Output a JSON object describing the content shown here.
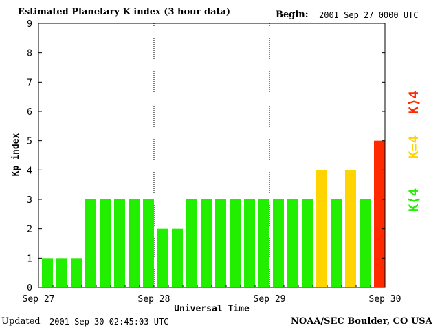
{
  "header": {
    "title": "Estimated Planetary K index (3 hour data)",
    "begin_label": "Begin:",
    "begin_value": "2001 Sep 27 0000 UTC"
  },
  "footer": {
    "updated_label": "Updated",
    "updated_value": "2001 Sep 30 02:45:03 UTC",
    "source": "NOAA/SEC Boulder, CO USA"
  },
  "colors": {
    "below_4": "#22ee00",
    "equal_4": "#ffd400",
    "above_4": "#ff2a00"
  },
  "legend": [
    {
      "label": "K⟨4",
      "color": "#22ee00"
    },
    {
      "label": "K=4",
      "color": "#ffd400"
    },
    {
      "label": "K⟩4",
      "color": "#ff2a00"
    }
  ],
  "chart_data": {
    "type": "bar",
    "xlabel": "Universal Time",
    "ylabel": "Kp index",
    "ylim": [
      0,
      9
    ],
    "yticks": [
      "0",
      "1",
      "2",
      "3",
      "4",
      "5",
      "6",
      "7",
      "8",
      "9"
    ],
    "xticks": [
      "Sep 27",
      "Sep 28",
      "Sep 29",
      "Sep 30"
    ],
    "grid": "vertical dotted lines at day boundaries",
    "bar_interval_hours": 3,
    "values": [
      1,
      1,
      1,
      3,
      3,
      3,
      3,
      3,
      2,
      2,
      3,
      3,
      3,
      3,
      3,
      3,
      3,
      3,
      3,
      4,
      3,
      4,
      3,
      5
    ]
  }
}
